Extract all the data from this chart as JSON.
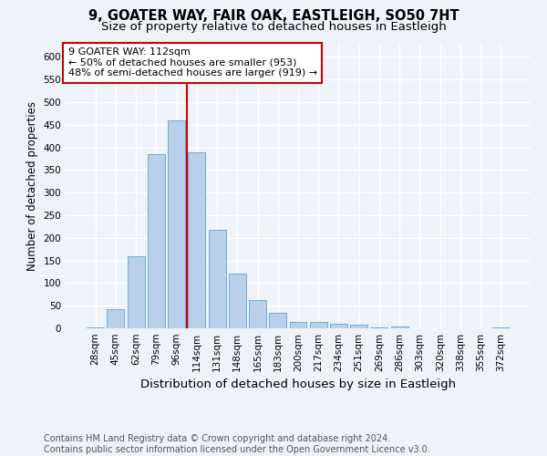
{
  "title": "9, GOATER WAY, FAIR OAK, EASTLEIGH, SO50 7HT",
  "subtitle": "Size of property relative to detached houses in Eastleigh",
  "xlabel": "Distribution of detached houses by size in Eastleigh",
  "ylabel": "Number of detached properties",
  "footer_line1": "Contains HM Land Registry data © Crown copyright and database right 2024.",
  "footer_line2": "Contains public sector information licensed under the Open Government Licence v3.0.",
  "bar_labels": [
    "28sqm",
    "45sqm",
    "62sqm",
    "79sqm",
    "96sqm",
    "114sqm",
    "131sqm",
    "148sqm",
    "165sqm",
    "183sqm",
    "200sqm",
    "217sqm",
    "234sqm",
    "251sqm",
    "269sqm",
    "286sqm",
    "303sqm",
    "320sqm",
    "338sqm",
    "355sqm",
    "372sqm"
  ],
  "bar_values": [
    3,
    42,
    160,
    385,
    460,
    390,
    218,
    121,
    62,
    35,
    15,
    15,
    10,
    8,
    3,
    5,
    1,
    1,
    1,
    1,
    3
  ],
  "bar_color": "#b8d0ea",
  "bar_edgecolor": "#6aaed6",
  "annotation_text": "9 GOATER WAY: 112sqm\n← 50% of detached houses are smaller (953)\n48% of semi-detached houses are larger (919) →",
  "vline_x": 4.5,
  "vline_color": "#cc0000",
  "ylim": [
    0,
    630
  ],
  "yticks": [
    0,
    50,
    100,
    150,
    200,
    250,
    300,
    350,
    400,
    450,
    500,
    550,
    600
  ],
  "background_color": "#eef2f9",
  "grid_color": "#ffffff",
  "annotation_box_color": "#ffffff",
  "annotation_box_edgecolor": "#cc0000",
  "title_fontsize": 10.5,
  "subtitle_fontsize": 9.5,
  "xlabel_fontsize": 9.5,
  "ylabel_fontsize": 8.5,
  "annotation_fontsize": 8,
  "footer_fontsize": 7,
  "tick_fontsize": 7.5
}
